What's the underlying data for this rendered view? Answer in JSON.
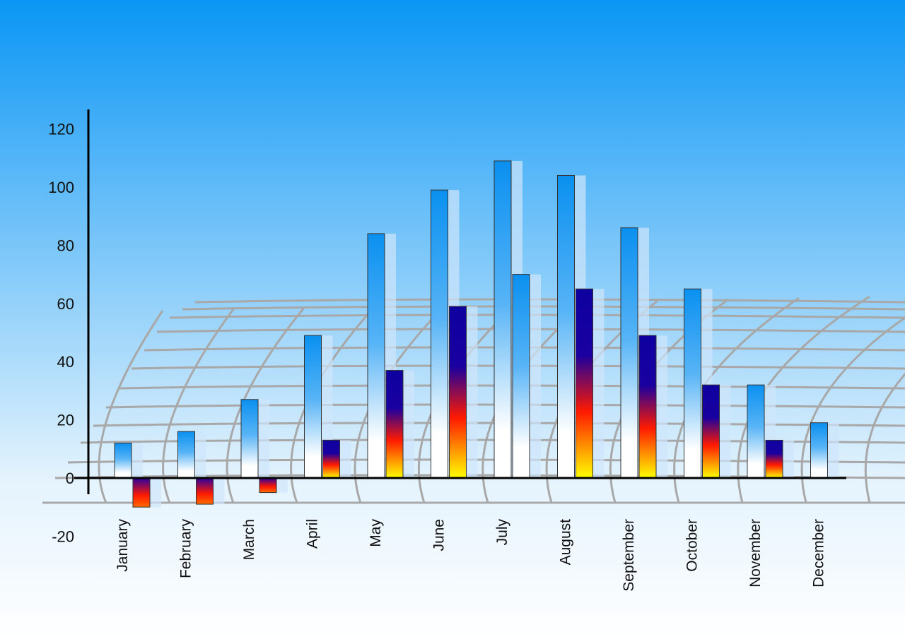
{
  "chart_data": {
    "type": "bar",
    "title": "",
    "xlabel": "",
    "ylabel": "",
    "ylim": [
      -20,
      125
    ],
    "yticks": [
      -20,
      0,
      20,
      40,
      60,
      80,
      100,
      120
    ],
    "grid": false,
    "categories": [
      "January",
      "February",
      "March",
      "April",
      "May",
      "June",
      "July",
      "August",
      "September",
      "October",
      "November",
      "December"
    ],
    "series": [
      {
        "values": [
          12,
          16,
          27,
          49,
          84,
          99,
          109,
          104,
          86,
          65,
          32,
          19
        ],
        "color": "#0a96f5"
      },
      {
        "values": [
          -10,
          -9,
          -5,
          13,
          37,
          59,
          70,
          65,
          49,
          32,
          13,
          null
        ],
        "color": "#1000a0"
      }
    ],
    "colors": {
      "background_top": "#0a96f5",
      "background_bottom": "#ffffff",
      "accent_red": "#ff1a00",
      "accent_yellow": "#ffff00"
    }
  }
}
